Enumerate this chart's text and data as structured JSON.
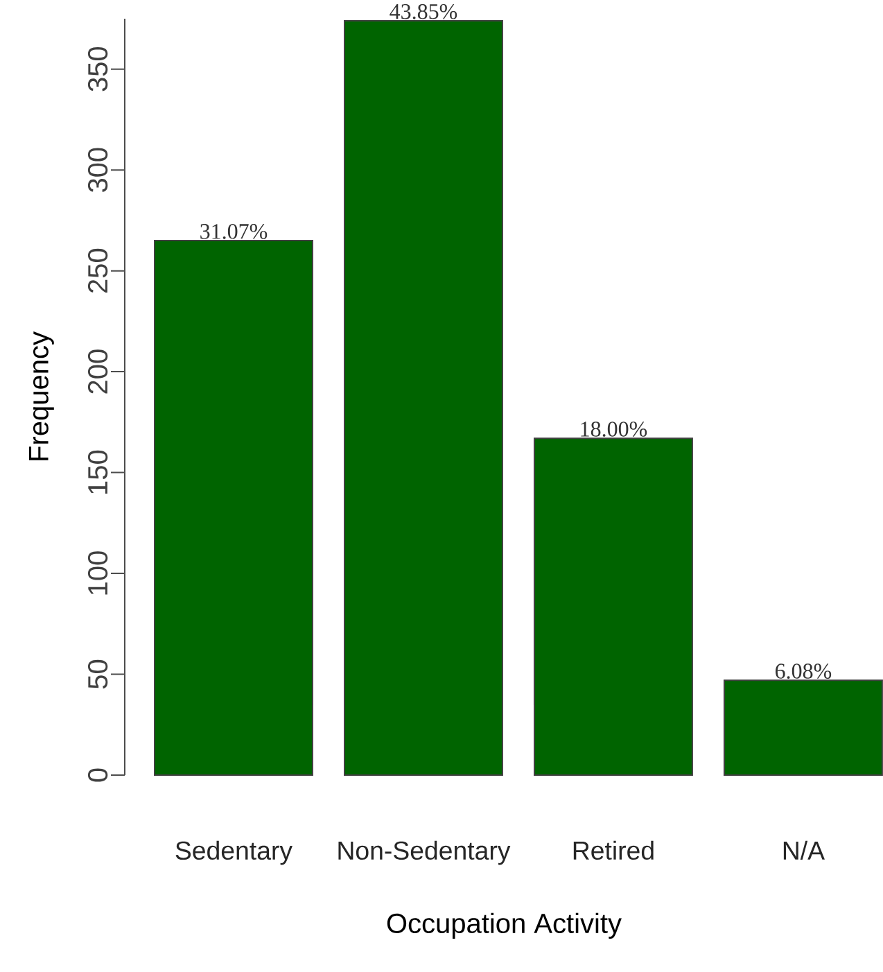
{
  "chart_data": {
    "type": "bar",
    "xlabel": "Occupation Activity",
    "ylabel": "Frequency",
    "categories": [
      "Sedentary",
      "Non-Sedentary",
      "Retired",
      "N/A"
    ],
    "values": [
      265,
      374,
      167,
      47
    ],
    "annotations": [
      {
        "text": "31.07%",
        "x": "Sedentary",
        "y": 265
      },
      {
        "text": "43.85%",
        "x": "Non-Sedentary",
        "y": 374
      },
      {
        "text": "18.00%",
        "x": "Retired",
        "y": 167
      },
      {
        "text": "6.08%",
        "x": "N/A",
        "y": 47
      }
    ],
    "color": "#006400",
    "ylim": [
      0,
      375
    ],
    "yticks": [
      0,
      50,
      100,
      150,
      200,
      250,
      300,
      350
    ],
    "grid": false
  }
}
